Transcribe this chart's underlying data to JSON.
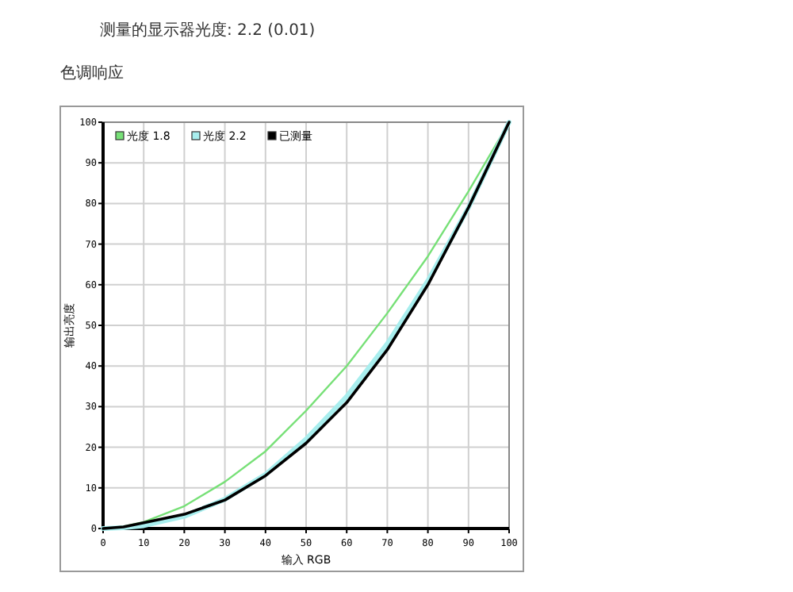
{
  "chart_data": {
    "type": "line",
    "title": "测量的显示器光度: 2.2 (0.01)",
    "subtitle": "色调响应",
    "xlabel": "输入 RGB",
    "ylabel": "输出亮度",
    "x": [
      0,
      5,
      10,
      20,
      30,
      40,
      50,
      60,
      70,
      80,
      90,
      100
    ],
    "series": [
      {
        "name": "光度 1.8",
        "color": "#77e077",
        "values": [
          0,
          0.5,
          1.6,
          5.5,
          11.5,
          19,
          29,
          40,
          53,
          67,
          83,
          100
        ]
      },
      {
        "name": "光度 2.2",
        "color": "#a8eeee",
        "values": [
          0,
          0.2,
          0.7,
          3,
          7.2,
          13.3,
          22,
          32.5,
          45.5,
          61,
          79,
          100
        ]
      },
      {
        "name": "已测量",
        "color": "#000000",
        "values": [
          0,
          0.4,
          1.4,
          3.5,
          7,
          13,
          21,
          31,
          44,
          60,
          79,
          100
        ]
      }
    ],
    "xlim": [
      0,
      100
    ],
    "ylim": [
      0,
      100
    ],
    "xticks": [
      0,
      10,
      20,
      30,
      40,
      50,
      60,
      70,
      80,
      90,
      100
    ],
    "yticks": [
      0,
      10,
      20,
      30,
      40,
      50,
      60,
      70,
      80,
      90,
      100
    ],
    "grid": true,
    "legend": "top left",
    "marker": "none",
    "line_style": "solid"
  }
}
